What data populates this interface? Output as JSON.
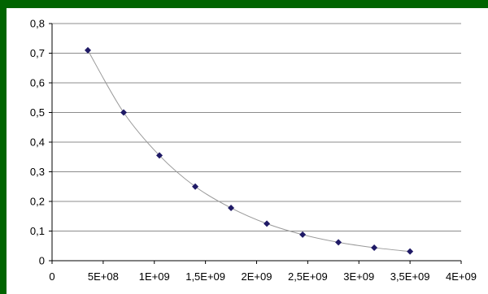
{
  "chart_data": {
    "type": "scatter",
    "title": "",
    "xlabel": "",
    "ylabel": "",
    "xlim": [
      0,
      4000000000
    ],
    "ylim": [
      0,
      0.8
    ],
    "x_ticks": [
      0,
      500000000,
      1000000000,
      1500000000,
      2000000000,
      2500000000,
      3000000000,
      3500000000,
      4000000000
    ],
    "x_tick_labels": [
      "0",
      "5E+08",
      "1E+09",
      "1,5E+09",
      "2E+09",
      "2,5E+09",
      "3E+09",
      "3,5E+09",
      "4E+09"
    ],
    "y_ticks": [
      0,
      0.1,
      0.2,
      0.3,
      0.4,
      0.5,
      0.6,
      0.7,
      0.8
    ],
    "y_tick_labels": [
      "0",
      "0,1",
      "0,2",
      "0,3",
      "0,4",
      "0,5",
      "0,6",
      "0,7",
      "0,8"
    ],
    "grid": "horizontal",
    "trendline": "smooth",
    "colors": {
      "marker": "#1f1a66",
      "line": "#999999",
      "grid": "#8c8c8c",
      "frame": "#006400"
    },
    "series": [
      {
        "x": [
          350000000,
          700000000,
          1050000000,
          1400000000,
          1750000000,
          2100000000,
          2450000000,
          2800000000,
          3150000000,
          3500000000
        ],
        "y": [
          0.71,
          0.5,
          0.355,
          0.25,
          0.178,
          0.125,
          0.088,
          0.062,
          0.044,
          0.031
        ]
      }
    ]
  }
}
